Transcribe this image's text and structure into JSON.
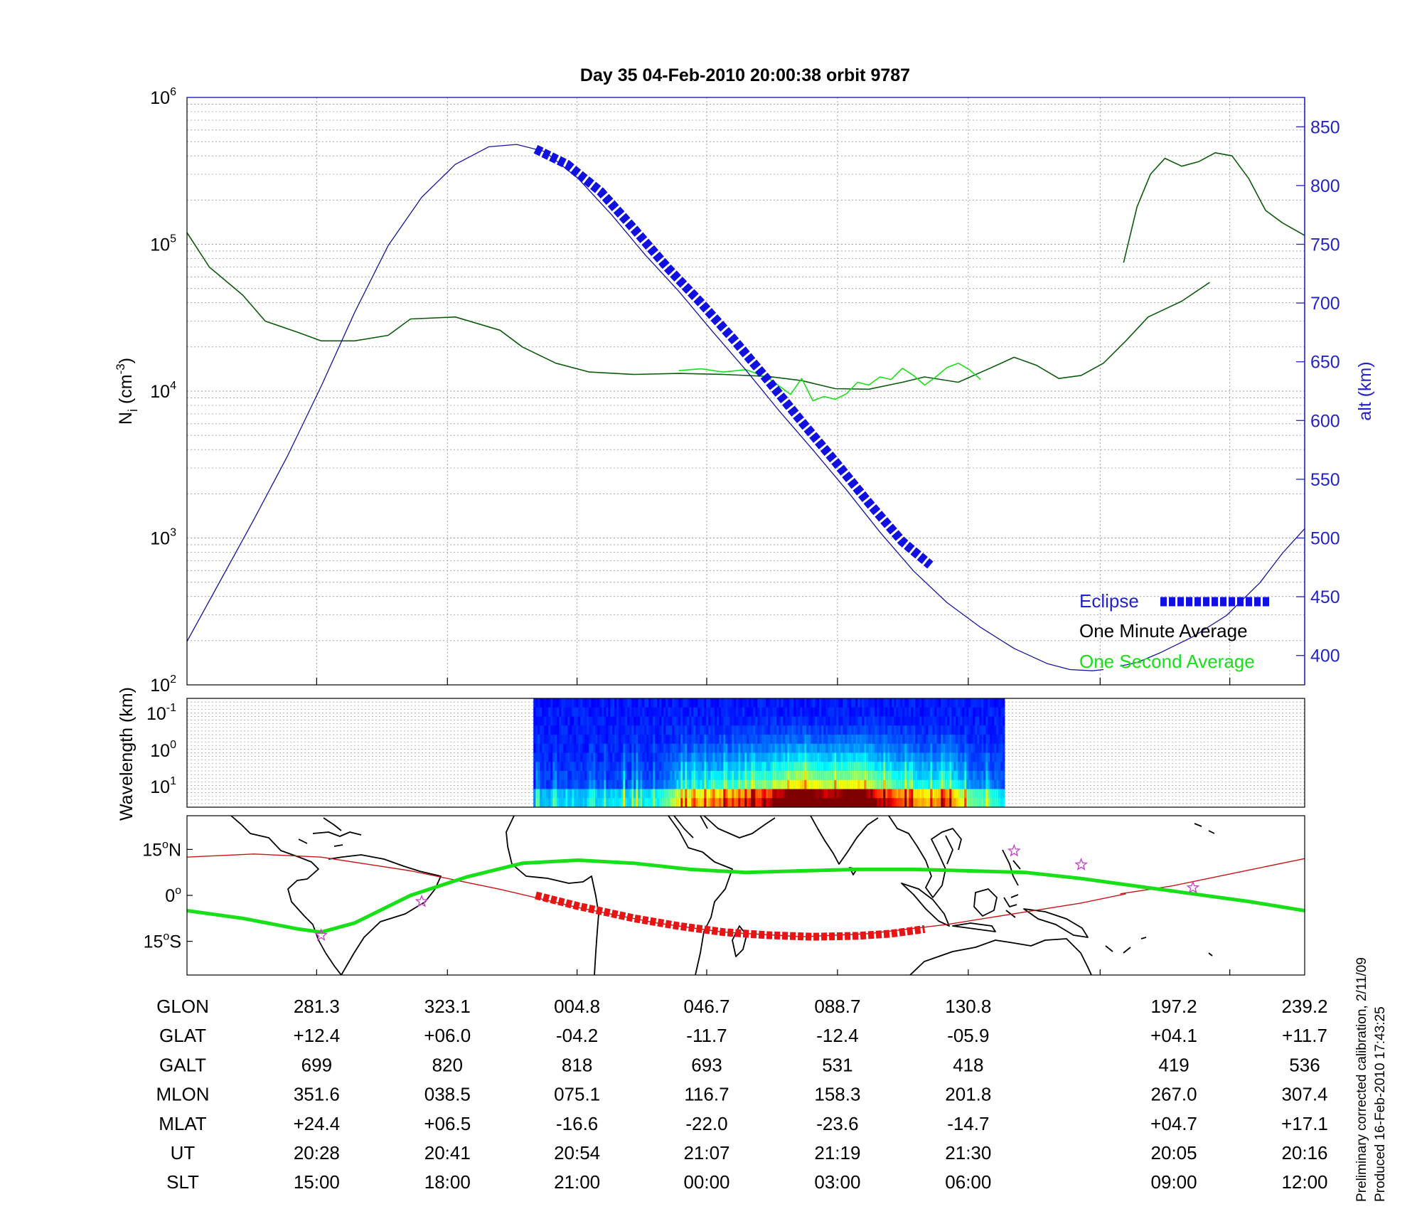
{
  "chart_data": [
    {
      "type": "line",
      "title": "Day 35  04-Feb-2010 20:00:38   orbit 9787",
      "ylabel": "N",
      "ylabel_sub": "i",
      "ylabel_unit": "(cm",
      "ylabel_unit_sup": "-3",
      "ylabel_unit_end": ")",
      "ylabel_right": "alt (km)",
      "y_scale": "log",
      "ylim": [
        100,
        1000000
      ],
      "y_ticks": [
        {
          "base": "10",
          "exp": "2"
        },
        {
          "base": "10",
          "exp": "3"
        },
        {
          "base": "10",
          "exp": "4"
        },
        {
          "base": "10",
          "exp": "5"
        },
        {
          "base": "10",
          "exp": "6"
        }
      ],
      "y2lim": [
        375,
        875
      ],
      "y2_ticks": [
        "400",
        "450",
        "500",
        "550",
        "600",
        "650",
        "700",
        "750",
        "800",
        "850"
      ],
      "grid": true,
      "legend": {
        "position": "bottom-right",
        "entries": [
          {
            "label": "Eclipse",
            "color": "#2323c8",
            "style": "thick-dashed"
          },
          {
            "label": "One Minute Average",
            "color": "#000000",
            "style": "line"
          },
          {
            "label": "One Second Average",
            "color": "#18e018",
            "style": "line"
          }
        ]
      },
      "series": [
        {
          "name": "One Minute Average",
          "axis": "left",
          "color": "#0b5b0b",
          "segments": [
            [
              [
                0.0,
                120000
              ],
              [
                0.02,
                70000
              ],
              [
                0.05,
                45000
              ],
              [
                0.07,
                30000
              ],
              [
                0.1,
                25000
              ],
              [
                0.12,
                22000
              ],
              [
                0.15,
                22000
              ],
              [
                0.18,
                24000
              ],
              [
                0.2,
                31000
              ],
              [
                0.24,
                32000
              ],
              [
                0.28,
                26000
              ],
              [
                0.3,
                20000
              ],
              [
                0.33,
                15500
              ],
              [
                0.36,
                13500
              ],
              [
                0.4,
                13000
              ],
              [
                0.44,
                13200
              ],
              [
                0.48,
                13000
              ],
              [
                0.52,
                12600
              ],
              [
                0.55,
                11800
              ],
              [
                0.58,
                10400
              ],
              [
                0.61,
                10300
              ],
              [
                0.64,
                11500
              ],
              [
                0.66,
                12500
              ],
              [
                0.69,
                11500
              ],
              [
                0.72,
                14500
              ],
              [
                0.74,
                17000
              ],
              [
                0.76,
                15000
              ],
              [
                0.78,
                12200
              ],
              [
                0.8,
                12800
              ],
              [
                0.82,
                15500
              ],
              [
                0.84,
                22000
              ],
              [
                0.86,
                32000
              ],
              [
                0.89,
                41000
              ],
              [
                0.915,
                55000
              ]
            ],
            [
              [
                0.838,
                75000
              ],
              [
                0.85,
                180000
              ],
              [
                0.862,
                300000
              ],
              [
                0.875,
                385000
              ],
              [
                0.89,
                340000
              ],
              [
                0.905,
                365000
              ],
              [
                0.92,
                420000
              ],
              [
                0.935,
                400000
              ],
              [
                0.95,
                280000
              ],
              [
                0.965,
                170000
              ],
              [
                0.98,
                140000
              ],
              [
                1.0,
                115000
              ]
            ]
          ]
        },
        {
          "name": "One Second Average",
          "axis": "left",
          "color": "#18e018",
          "segments": [
            [
              [
                0.44,
                13800
              ],
              [
                0.46,
                14200
              ],
              [
                0.48,
                13500
              ],
              [
                0.5,
                14000
              ],
              [
                0.52,
                12300
              ],
              [
                0.54,
                9500
              ],
              [
                0.55,
                12200
              ],
              [
                0.56,
                8600
              ],
              [
                0.57,
                9200
              ],
              [
                0.58,
                8800
              ],
              [
                0.59,
                9600
              ],
              [
                0.6,
                11500
              ],
              [
                0.61,
                11000
              ],
              [
                0.62,
                12500
              ],
              [
                0.63,
                12000
              ],
              [
                0.64,
                14300
              ],
              [
                0.65,
                12800
              ],
              [
                0.66,
                11000
              ],
              [
                0.67,
                12500
              ],
              [
                0.68,
                14500
              ],
              [
                0.69,
                15500
              ],
              [
                0.7,
                14000
              ],
              [
                0.71,
                12000
              ]
            ]
          ]
        },
        {
          "name": "alt",
          "axis": "right",
          "color": "#1515a0",
          "points": [
            [
              0.0,
              412
            ],
            [
              0.03,
              464
            ],
            [
              0.06,
              516
            ],
            [
              0.09,
              570
            ],
            [
              0.12,
              629
            ],
            [
              0.15,
              692
            ],
            [
              0.18,
              749
            ],
            [
              0.21,
              790
            ],
            [
              0.24,
              818
            ],
            [
              0.27,
              833
            ],
            [
              0.295,
              835
            ],
            [
              0.32,
              829
            ],
            [
              0.35,
              806
            ],
            [
              0.38,
              775
            ],
            [
              0.41,
              741
            ],
            [
              0.44,
              710
            ],
            [
              0.47,
              676
            ],
            [
              0.5,
              643
            ],
            [
              0.53,
              608
            ],
            [
              0.56,
              575
            ],
            [
              0.59,
              541
            ],
            [
              0.62,
              505
            ],
            [
              0.65,
              472
            ],
            [
              0.68,
              445
            ],
            [
              0.71,
              424
            ],
            [
              0.74,
              406
            ],
            [
              0.77,
              393
            ],
            [
              0.79,
              388
            ],
            [
              0.81,
              387
            ],
            [
              0.82,
              388
            ]
          ]
        },
        {
          "name": "alt-tail",
          "axis": "right",
          "color": "#1515a0",
          "points": [
            [
              0.835,
              391
            ],
            [
              0.85,
              394
            ],
            [
              0.87,
              402
            ],
            [
              0.9,
              416
            ],
            [
              0.93,
              434
            ],
            [
              0.96,
              462
            ],
            [
              0.98,
              487
            ],
            [
              1.0,
              508
            ]
          ]
        }
      ],
      "eclipse": {
        "axis": "right",
        "color": "#1010e0",
        "points": [
          [
            0.312,
            831
          ],
          [
            0.34,
            818
          ],
          [
            0.37,
            795
          ],
          [
            0.4,
            763
          ],
          [
            0.43,
            730
          ],
          [
            0.46,
            700
          ],
          [
            0.49,
            668
          ],
          [
            0.52,
            634
          ],
          [
            0.55,
            599
          ],
          [
            0.58,
            565
          ],
          [
            0.61,
            530
          ],
          [
            0.64,
            497
          ],
          [
            0.665,
            477
          ]
        ]
      }
    },
    {
      "type": "heatmap",
      "ylabel": "Wavelength (km)",
      "y_scale": "log",
      "y_ticks": [
        {
          "base": "10",
          "exp": "-1"
        },
        {
          "base": "10",
          "exp": "0"
        },
        {
          "base": "10",
          "exp": "1"
        }
      ],
      "data_extent_x": [
        0.31,
        0.73
      ],
      "colormap": "jet",
      "intensity_profile": [
        [
          0.31,
          0.05
        ],
        [
          0.42,
          0.1
        ],
        [
          0.44,
          0.3
        ],
        [
          0.48,
          0.4
        ],
        [
          0.52,
          0.55
        ],
        [
          0.55,
          0.85
        ],
        [
          0.57,
          0.65
        ],
        [
          0.6,
          0.8
        ],
        [
          0.62,
          0.55
        ],
        [
          0.66,
          0.35
        ],
        [
          0.68,
          0.45
        ],
        [
          0.7,
          0.2
        ],
        [
          0.73,
          0.1
        ]
      ]
    },
    {
      "type": "map",
      "y_ticks": [
        {
          "deg": "15",
          "hemi": "N"
        },
        {
          "deg": "0",
          "hemi": ""
        },
        {
          "deg": "15",
          "hemi": "S"
        }
      ],
      "ylim": [
        -26,
        26
      ],
      "series": [
        {
          "name": "orbit track",
          "color": "#c81414",
          "segments": [
            [
              [
                0.0,
                12.5
              ],
              [
                0.06,
                13.5
              ],
              [
                0.12,
                12.5
              ],
              [
                0.2,
                8.0
              ],
              [
                0.28,
                2.0
              ],
              [
                0.35,
                -4.0
              ],
              [
                0.42,
                -9.0
              ],
              [
                0.48,
                -12.0
              ],
              [
                0.55,
                -13.5
              ],
              [
                0.61,
                -12.5
              ],
              [
                0.68,
                -9.5
              ],
              [
                0.74,
                -6.0
              ],
              [
                0.8,
                -2.5
              ],
              [
                0.84,
                0.5
              ]
            ],
            [
              [
                0.835,
                0.5
              ],
              [
                0.88,
                3.0
              ],
              [
                0.94,
                7.5
              ],
              [
                1.0,
                12.0
              ]
            ]
          ]
        },
        {
          "name": "magnetic equator",
          "color": "#18e018",
          "points": [
            [
              0.0,
              -5.0
            ],
            [
              0.05,
              -7.5
            ],
            [
              0.1,
              -11.0
            ],
            [
              0.12,
              -12.0
            ],
            [
              0.15,
              -9.0
            ],
            [
              0.2,
              0.0
            ],
            [
              0.25,
              6.0
            ],
            [
              0.3,
              10.5
            ],
            [
              0.35,
              11.5
            ],
            [
              0.4,
              10.5
            ],
            [
              0.45,
              8.5
            ],
            [
              0.5,
              7.5
            ],
            [
              0.55,
              8.0
            ],
            [
              0.6,
              8.5
            ],
            [
              0.65,
              8.5
            ],
            [
              0.7,
              8.0
            ],
            [
              0.75,
              7.5
            ],
            [
              0.8,
              5.5
            ],
            [
              0.85,
              3.0
            ],
            [
              0.9,
              0.5
            ],
            [
              0.95,
              -2.0
            ],
            [
              1.0,
              -5.0
            ]
          ]
        }
      ],
      "eclipse": {
        "color": "#e81414",
        "points": [
          [
            0.312,
            0.0
          ],
          [
            0.35,
            -3.5
          ],
          [
            0.4,
            -7.5
          ],
          [
            0.44,
            -10.0
          ],
          [
            0.48,
            -12.0
          ],
          [
            0.52,
            -13.0
          ],
          [
            0.56,
            -13.5
          ],
          [
            0.6,
            -13.2
          ],
          [
            0.63,
            -12.5
          ],
          [
            0.66,
            -11.0
          ]
        ]
      },
      "stars": [
        [
          0.12,
          -13.0
        ],
        [
          0.21,
          -2.0
        ],
        [
          0.74,
          14.5
        ],
        [
          0.8,
          10.0
        ],
        [
          0.9,
          2.5
        ]
      ]
    }
  ],
  "table": {
    "row_labels": [
      "GLON",
      "GLAT",
      "GALT",
      "MLON",
      "MLAT",
      "UT",
      "SLT"
    ],
    "columns": [
      {
        "x": 0.116,
        "values": [
          "281.3",
          "+12.4",
          "699",
          "351.6",
          "+24.4",
          "20:28",
          "15:00"
        ]
      },
      {
        "x": 0.233,
        "values": [
          "323.1",
          "+06.0",
          "820",
          "038.5",
          "+06.5",
          "20:41",
          "18:00"
        ]
      },
      {
        "x": 0.349,
        "values": [
          "004.8",
          "-04.2",
          "818",
          "075.1",
          "-16.6",
          "20:54",
          "21:00"
        ]
      },
      {
        "x": 0.465,
        "values": [
          "046.7",
          "-11.7",
          "693",
          "116.7",
          "-22.0",
          "21:07",
          "00:00"
        ]
      },
      {
        "x": 0.582,
        "values": [
          "088.7",
          "-12.4",
          "531",
          "158.3",
          "-23.6",
          "21:19",
          "03:00"
        ]
      },
      {
        "x": 0.699,
        "values": [
          "130.8",
          "-05.9",
          "418",
          "201.8",
          "-14.7",
          "21:30",
          "06:00"
        ]
      },
      {
        "x": 0.883,
        "values": [
          "197.2",
          "+04.1",
          "419",
          "267.0",
          "+04.7",
          "20:05",
          "09:00"
        ]
      },
      {
        "x": 1.0,
        "values": [
          "239.2",
          "+11.7",
          "536",
          "307.4",
          "+17.1",
          "20:16",
          "12:00"
        ]
      }
    ]
  },
  "side_note": {
    "line1": "Preliminary corrected calibration, 2/11/09",
    "line2": "Produced 16-Feb-2010 17:43:25"
  },
  "colors": {
    "right_axis": "#2323c8",
    "grid": "#9a9a9a",
    "heatmap_bg": "#0a14a0"
  }
}
